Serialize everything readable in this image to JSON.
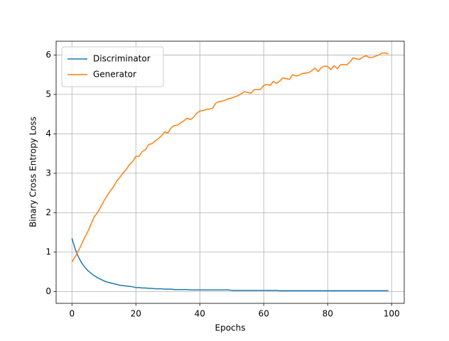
{
  "chart_data": {
    "type": "line",
    "xlabel": "Epochs",
    "ylabel": "Binary Cross Entropy Loss",
    "x": [
      0,
      1,
      2,
      3,
      4,
      5,
      6,
      7,
      8,
      9,
      10,
      11,
      12,
      13,
      14,
      15,
      16,
      17,
      18,
      19,
      20,
      21,
      22,
      23,
      24,
      25,
      26,
      27,
      28,
      29,
      30,
      31,
      32,
      33,
      34,
      35,
      36,
      37,
      38,
      39,
      40,
      41,
      42,
      43,
      44,
      45,
      46,
      47,
      48,
      49,
      50,
      51,
      52,
      53,
      54,
      55,
      56,
      57,
      58,
      59,
      60,
      61,
      62,
      63,
      64,
      65,
      66,
      67,
      68,
      69,
      70,
      71,
      72,
      73,
      74,
      75,
      76,
      77,
      78,
      79,
      80,
      81,
      82,
      83,
      84,
      85,
      86,
      87,
      88,
      89,
      90,
      91,
      92,
      93,
      94,
      95,
      96,
      97,
      98,
      99
    ],
    "series": [
      {
        "name": "Discriminator",
        "color": "#1f77b4",
        "values": [
          1.35,
          1.08,
          0.88,
          0.73,
          0.62,
          0.53,
          0.46,
          0.4,
          0.35,
          0.31,
          0.27,
          0.24,
          0.22,
          0.2,
          0.18,
          0.16,
          0.15,
          0.14,
          0.13,
          0.12,
          0.1,
          0.1,
          0.09,
          0.09,
          0.08,
          0.08,
          0.07,
          0.07,
          0.07,
          0.06,
          0.06,
          0.06,
          0.05,
          0.05,
          0.05,
          0.05,
          0.05,
          0.04,
          0.04,
          0.04,
          0.04,
          0.04,
          0.04,
          0.04,
          0.04,
          0.04,
          0.04,
          0.04,
          0.04,
          0.04,
          0.03,
          0.03,
          0.03,
          0.03,
          0.03,
          0.03,
          0.03,
          0.03,
          0.03,
          0.03,
          0.03,
          0.03,
          0.03,
          0.03,
          0.03,
          0.02,
          0.02,
          0.02,
          0.02,
          0.02,
          0.02,
          0.02,
          0.02,
          0.02,
          0.02,
          0.02,
          0.02,
          0.02,
          0.02,
          0.02,
          0.02,
          0.02,
          0.02,
          0.02,
          0.02,
          0.02,
          0.02,
          0.02,
          0.02,
          0.02,
          0.02,
          0.02,
          0.02,
          0.02,
          0.02,
          0.02,
          0.02,
          0.02,
          0.02,
          0.02
        ]
      },
      {
        "name": "Generator",
        "color": "#ff7f0e",
        "values": [
          0.75,
          0.88,
          1.03,
          1.2,
          1.37,
          1.53,
          1.72,
          1.9,
          2.0,
          2.15,
          2.3,
          2.43,
          2.55,
          2.66,
          2.8,
          2.9,
          3.01,
          3.1,
          3.22,
          3.3,
          3.43,
          3.43,
          3.55,
          3.6,
          3.73,
          3.75,
          3.82,
          3.88,
          3.95,
          4.05,
          4.02,
          4.15,
          4.21,
          4.22,
          4.28,
          4.33,
          4.4,
          4.36,
          4.42,
          4.52,
          4.58,
          4.59,
          4.62,
          4.63,
          4.65,
          4.78,
          4.82,
          4.83,
          4.86,
          4.89,
          4.91,
          4.94,
          4.97,
          5.02,
          5.07,
          5.05,
          5.03,
          5.12,
          5.12,
          5.13,
          5.23,
          5.25,
          5.23,
          5.33,
          5.28,
          5.34,
          5.42,
          5.4,
          5.38,
          5.5,
          5.47,
          5.48,
          5.53,
          5.54,
          5.55,
          5.6,
          5.67,
          5.58,
          5.68,
          5.72,
          5.71,
          5.63,
          5.73,
          5.65,
          5.75,
          5.76,
          5.75,
          5.83,
          5.93,
          5.9,
          5.89,
          5.95,
          5.98,
          5.94,
          5.94,
          5.97,
          6.0,
          6.05,
          6.05,
          6.03
        ]
      }
    ],
    "xlim": [
      -4.95,
      103.95
    ],
    "xticks": [
      0,
      20,
      40,
      60,
      80,
      100
    ],
    "ylim": [
      -0.3,
      6.35
    ],
    "yticks": [
      0,
      1,
      2,
      3,
      4,
      5,
      6
    ],
    "grid": true,
    "legend": "upper left"
  }
}
